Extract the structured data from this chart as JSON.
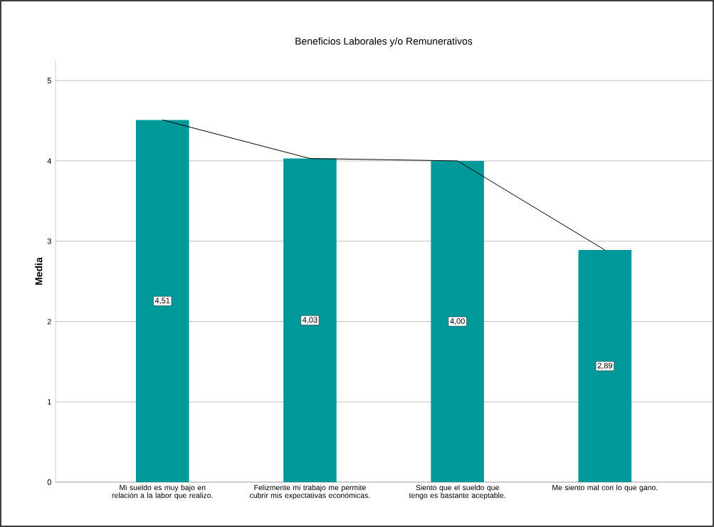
{
  "chart_data": {
    "type": "bar",
    "title": "Beneficios Laborales y/o Remunerativos",
    "ylabel": "Media",
    "categories": [
      "Mi sueldo es muy bajo en relación a la labor que realizo.",
      "Felizmente mi trabajo me permite cubrir mis expectativas económicas.",
      "Siento que el sueldo que tengo es bastante aceptable.",
      "Me siento mal con lo que gano."
    ],
    "series": [
      {
        "color": "#009999",
        "values": [
          4.51,
          4.03,
          4.0,
          2.89
        ],
        "value_labels": [
          "4,51",
          "4,03",
          "4,00",
          "2,89"
        ]
      },
      {
        "type": "line",
        "color": "#000000",
        "values": [
          4.51,
          4.03,
          4.0,
          2.89
        ]
      }
    ],
    "ylim": [
      0,
      5.25
    ],
    "yticks": [
      0,
      1,
      2,
      3,
      4,
      5
    ],
    "grid": "y"
  }
}
